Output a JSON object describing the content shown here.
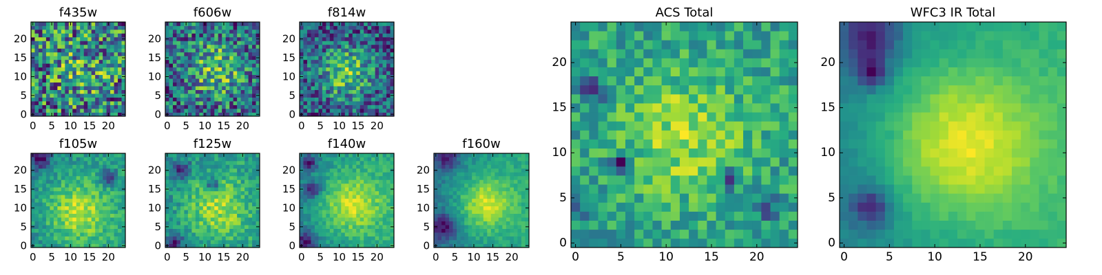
{
  "chart_data": [
    {
      "type": "heatmap",
      "title": "f435w",
      "nx": 25,
      "ny": 25,
      "xlim": [
        -0.5,
        24.5
      ],
      "ylim": [
        -0.5,
        24.5
      ],
      "xticks": [
        "0",
        "5",
        "10",
        "15",
        "20"
      ],
      "yticks": [
        "0",
        "5",
        "10",
        "15",
        "20"
      ],
      "colormap": "viridis",
      "grid": false,
      "seed": 11,
      "blob": {
        "cx": 13,
        "cy": 12,
        "sigma": 6,
        "amp": 0.15
      },
      "gradient": 0.0,
      "noise": 0.75,
      "dark_patches": []
    },
    {
      "type": "heatmap",
      "title": "f606w",
      "nx": 25,
      "ny": 25,
      "xlim": [
        -0.5,
        24.5
      ],
      "ylim": [
        -0.5,
        24.5
      ],
      "xticks": [
        "0",
        "5",
        "10",
        "15",
        "20"
      ],
      "yticks": [
        "0",
        "5",
        "10",
        "15",
        "20"
      ],
      "colormap": "viridis",
      "grid": false,
      "seed": 23,
      "blob": {
        "cx": 13,
        "cy": 12,
        "sigma": 5.5,
        "amp": 0.3
      },
      "gradient": 0.0,
      "noise": 0.6,
      "dark_patches": []
    },
    {
      "type": "heatmap",
      "title": "f814w",
      "nx": 25,
      "ny": 25,
      "xlim": [
        -0.5,
        24.5
      ],
      "ylim": [
        -0.5,
        24.5
      ],
      "xticks": [
        "0",
        "5",
        "10",
        "15",
        "20"
      ],
      "yticks": [
        "0",
        "5",
        "10",
        "15",
        "20"
      ],
      "colormap": "viridis",
      "grid": false,
      "seed": 37,
      "blob": {
        "cx": 12,
        "cy": 11,
        "sigma": 5,
        "amp": 0.4
      },
      "gradient": 0.0,
      "noise": 0.55,
      "dark_patches": []
    },
    {
      "type": "heatmap",
      "title": "f105w",
      "nx": 25,
      "ny": 25,
      "xlim": [
        -0.5,
        24.5
      ],
      "ylim": [
        -0.5,
        24.5
      ],
      "xticks": [
        "0",
        "5",
        "10",
        "15",
        "20"
      ],
      "yticks": [
        "0",
        "5",
        "10",
        "15",
        "20"
      ],
      "colormap": "viridis",
      "grid": false,
      "seed": 41,
      "blob": {
        "cx": 12,
        "cy": 9,
        "sigma": 6,
        "amp": 0.5
      },
      "gradient": 0.1,
      "noise": 0.35,
      "dark_patches": [
        {
          "x": 2,
          "y": 23,
          "r": 2
        },
        {
          "x": 20,
          "y": 18,
          "r": 1.5
        }
      ]
    },
    {
      "type": "heatmap",
      "title": "f125w",
      "nx": 25,
      "ny": 25,
      "xlim": [
        -0.5,
        24.5
      ],
      "ylim": [
        -0.5,
        24.5
      ],
      "xticks": [
        "0",
        "5",
        "10",
        "15",
        "20"
      ],
      "yticks": [
        "0",
        "5",
        "10",
        "15",
        "20"
      ],
      "colormap": "viridis",
      "grid": false,
      "seed": 53,
      "blob": {
        "cx": 13,
        "cy": 10,
        "sigma": 6,
        "amp": 0.45
      },
      "gradient": 0.1,
      "noise": 0.4,
      "dark_patches": [
        {
          "x": 2,
          "y": 1,
          "r": 1.5
        },
        {
          "x": 4,
          "y": 20,
          "r": 1.5
        },
        {
          "x": 12,
          "y": 16,
          "r": 1.2
        }
      ]
    },
    {
      "type": "heatmap",
      "title": "f140w",
      "nx": 25,
      "ny": 25,
      "xlim": [
        -0.5,
        24.5
      ],
      "ylim": [
        -0.5,
        24.5
      ],
      "xticks": [
        "0",
        "5",
        "10",
        "15",
        "20"
      ],
      "yticks": [
        "0",
        "5",
        "10",
        "15",
        "20"
      ],
      "colormap": "viridis",
      "grid": false,
      "seed": 67,
      "blob": {
        "cx": 13,
        "cy": 11,
        "sigma": 5.5,
        "amp": 0.55
      },
      "gradient": 0.25,
      "noise": 0.3,
      "dark_patches": [
        {
          "x": 1,
          "y": 1,
          "r": 2
        },
        {
          "x": 3,
          "y": 15,
          "r": 1.5
        },
        {
          "x": 2,
          "y": 22,
          "r": 1.5
        }
      ]
    },
    {
      "type": "heatmap",
      "title": "f160w",
      "nx": 25,
      "ny": 25,
      "xlim": [
        -0.5,
        24.5
      ],
      "ylim": [
        -0.5,
        24.5
      ],
      "xticks": [
        "0",
        "5",
        "10",
        "15",
        "20"
      ],
      "yticks": [
        "0",
        "5",
        "10",
        "15",
        "20"
      ],
      "colormap": "viridis",
      "grid": false,
      "seed": 79,
      "blob": {
        "cx": 13,
        "cy": 11,
        "sigma": 5,
        "amp": 0.6
      },
      "gradient": 0.3,
      "noise": 0.25,
      "dark_patches": [
        {
          "x": 2,
          "y": 5,
          "r": 2.5
        },
        {
          "x": 3,
          "y": 23,
          "r": 2
        }
      ]
    },
    {
      "type": "heatmap",
      "title": "ACS Total",
      "nx": 25,
      "ny": 25,
      "xlim": [
        -0.5,
        24.5
      ],
      "ylim": [
        -0.5,
        24.5
      ],
      "xticks": [
        "0",
        "5",
        "10",
        "15",
        "20"
      ],
      "yticks": [
        "0",
        "5",
        "10",
        "15",
        "20"
      ],
      "colormap": "viridis",
      "grid": false,
      "seed": 97,
      "blob": {
        "cx": 12,
        "cy": 12,
        "sigma": 5,
        "amp": 0.35
      },
      "gradient": 0.0,
      "noise": 0.45,
      "dark_patches": [
        {
          "x": 2,
          "y": 17,
          "r": 1
        },
        {
          "x": 5,
          "y": 9,
          "r": 0.8
        },
        {
          "x": 0,
          "y": 4,
          "r": 0.8
        },
        {
          "x": 17,
          "y": 7,
          "r": 0.8
        },
        {
          "x": 21,
          "y": 4,
          "r": 0.8
        }
      ]
    },
    {
      "type": "heatmap",
      "title": "WFC3 IR Total",
      "nx": 25,
      "ny": 25,
      "xlim": [
        -0.5,
        24.5
      ],
      "ylim": [
        -0.5,
        24.5
      ],
      "xticks": [
        "0",
        "5",
        "10",
        "15",
        "20"
      ],
      "yticks": [
        "0",
        "5",
        "10",
        "15",
        "20"
      ],
      "colormap": "viridis",
      "grid": false,
      "seed": 101,
      "blob": {
        "cx": 13,
        "cy": 11,
        "sigma": 6,
        "amp": 0.6
      },
      "gradient": 0.3,
      "noise": 0.12,
      "dark_patches": [
        {
          "x": 3,
          "y": 23,
          "r": 2.2
        },
        {
          "x": 3,
          "y": 4,
          "r": 1.5
        },
        {
          "x": 3,
          "y": 19,
          "r": 1.2
        }
      ]
    }
  ]
}
